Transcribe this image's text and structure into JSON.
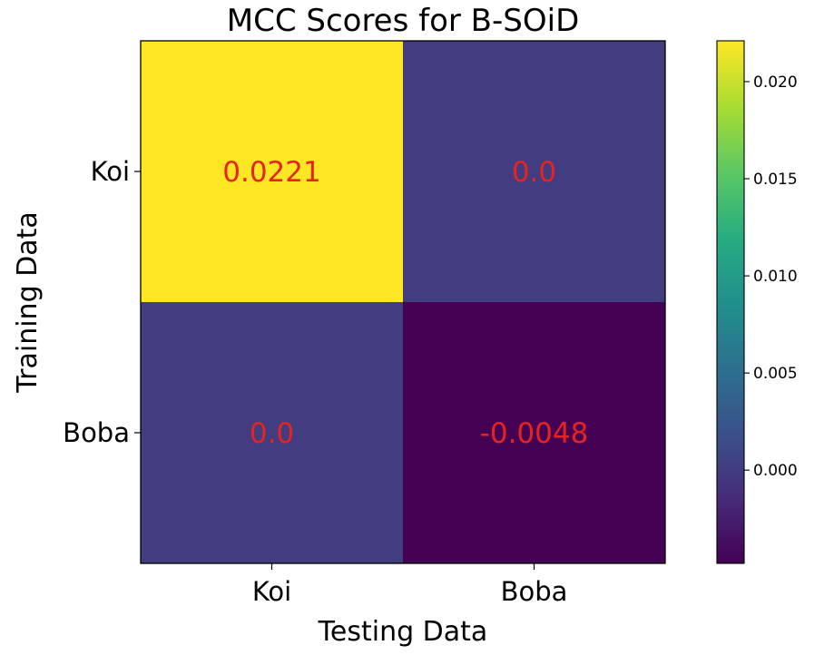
{
  "chart_data": {
    "type": "heatmap",
    "title": "MCC Scores for B-SOiD",
    "xlabel": "Testing Data",
    "ylabel": "Training Data",
    "x_categories": [
      "Koi",
      "Boba"
    ],
    "y_categories": [
      "Koi",
      "Boba"
    ],
    "values": [
      [
        0.0221,
        0.0
      ],
      [
        0.0,
        -0.0048
      ]
    ],
    "value_labels": [
      [
        "0.0221",
        "0.0"
      ],
      [
        "0.0",
        "-0.0048"
      ]
    ],
    "color_range": [
      -0.0048,
      0.0221
    ],
    "colorbar_ticks": [
      "0.020",
      "0.015",
      "0.010",
      "0.005",
      "0.000"
    ],
    "colorbar_tick_values": [
      0.02,
      0.015,
      0.01,
      0.005,
      0.0
    ],
    "colormap": "viridis",
    "annotation_color": "#e8231f"
  }
}
